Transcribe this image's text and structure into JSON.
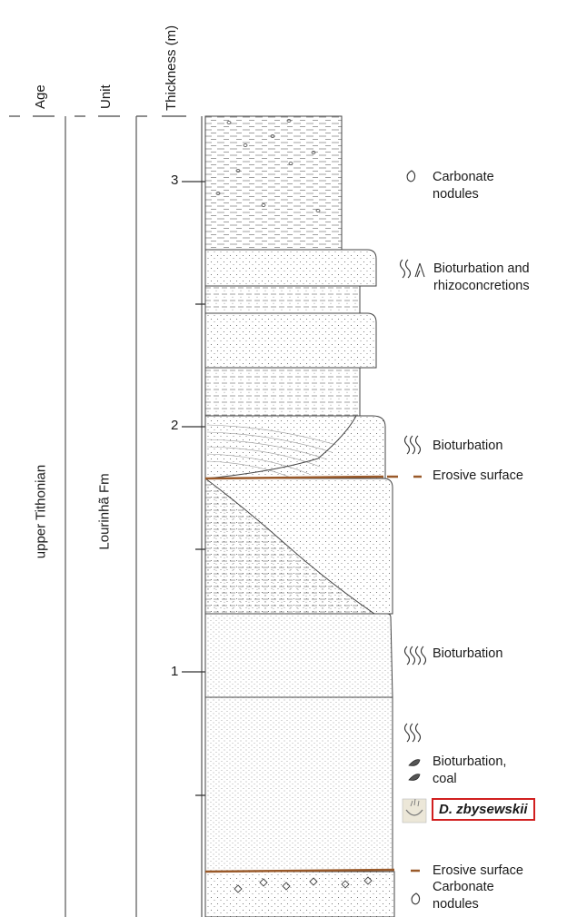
{
  "headers": {
    "age": "Age",
    "unit": "Unit",
    "thickness": "Thickness (m)"
  },
  "age_label": "upper Tithonian",
  "unit_label": "Lourinhã Fm",
  "ticks": {
    "t3": "3",
    "t2": "2",
    "t1": "1"
  },
  "annotations": {
    "carbonate_top": [
      "Carbonate",
      "nodules"
    ],
    "bioturbation_rhizo": [
      "Bioturbation and",
      "rhizoconcretions"
    ],
    "bioturbation_a": "Bioturbation",
    "erosive_a": "Erosive surface",
    "bioturbation_b": "Bioturbation",
    "bioturbation_coal": [
      "Bioturbation,",
      "coal"
    ],
    "species": "D. zbysewskii",
    "erosive_b": "Erosive surface",
    "carbonate_bottom": [
      "Carbonate",
      "nodules"
    ]
  },
  "colors": {
    "erosive": "#9a5a2a",
    "species_box": "#d11f1f",
    "line": "#333333"
  }
}
